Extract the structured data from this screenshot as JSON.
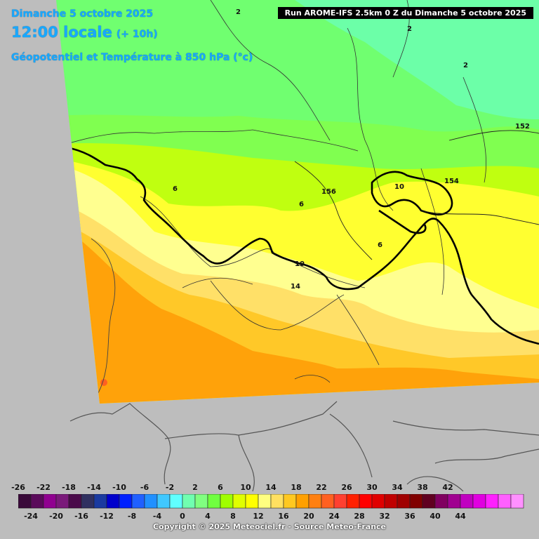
{
  "header": {
    "date": "Dimanche 5 octobre 2025",
    "time": "12:00 locale",
    "offset": "(+ 10h)",
    "parameter": "Géopotentiel et Température à 850 hPa (°c)",
    "run": "Run AROME-IFS 2.5km 0 Z du Dimanche 5 octobre 2025"
  },
  "legend": {
    "unit": "°c",
    "top_labels": [
      "-26",
      "-22",
      "-18",
      "-14",
      "-10",
      "-6",
      "-2",
      "2",
      "6",
      "10",
      "14",
      "18",
      "22",
      "26",
      "30",
      "34",
      "38",
      "42"
    ],
    "bottom_labels": [
      "-24",
      "-20",
      "-16",
      "-12",
      "-8",
      "-4",
      "0",
      "4",
      "8",
      "12",
      "16",
      "20",
      "24",
      "28",
      "32",
      "36",
      "40",
      "44"
    ],
    "colors": [
      "#3a0a3a",
      "#5a0a5a",
      "#900090",
      "#7a1a7a",
      "#4a0a4a",
      "#303060",
      "#1a3aa0",
      "#0000cc",
      "#0020ff",
      "#2060ff",
      "#2090ff",
      "#40c8ff",
      "#60ffff",
      "#70ffb0",
      "#80ff80",
      "#70ff40",
      "#a0ff00",
      "#e0ff00",
      "#ffff00",
      "#ffff80",
      "#ffe060",
      "#ffc820",
      "#ffa000",
      "#ff8010",
      "#ff6020",
      "#ff4030",
      "#ff2000",
      "#ff0000",
      "#e00000",
      "#c00000",
      "#a00000",
      "#800000",
      "#600020",
      "#800060",
      "#a00090",
      "#c000c0",
      "#e000e0",
      "#ff20ff",
      "#ff60ff",
      "#ff90ff"
    ]
  },
  "contours": {
    "isotherms": [
      "2",
      "2",
      "2",
      "6",
      "6",
      "6",
      "10",
      "10",
      "14"
    ],
    "geopotential": [
      "152",
      "154",
      "156"
    ]
  },
  "footer": {
    "copyright": "Copyright © 2025 Meteociel.fr - Source Meteo-France"
  }
}
